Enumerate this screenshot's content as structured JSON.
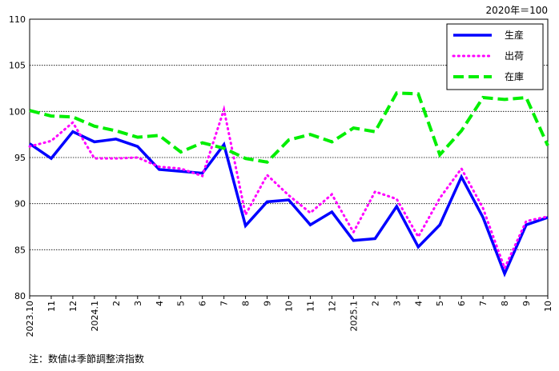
{
  "chart_data": {
    "type": "line",
    "unit_label": "2020年＝100",
    "note": "注：数値は季節調整済指数",
    "ylim": [
      80,
      110
    ],
    "yticks": [
      80,
      85,
      90,
      95,
      100,
      105,
      110
    ],
    "grid": "horizontal",
    "legend_position": "top-right",
    "categories": [
      "2023.10",
      "11",
      "12",
      "2024.1",
      "2",
      "3",
      "4",
      "5",
      "6",
      "7",
      "8",
      "9",
      "10",
      "11",
      "12",
      "2025.1",
      "2",
      "3",
      "4",
      "5",
      "6",
      "7",
      "8",
      "9",
      "10"
    ],
    "series": [
      {
        "name": "生産",
        "color": "#0000ff",
        "style": "solid",
        "values": [
          96.5,
          94.9,
          97.8,
          96.7,
          97.0,
          96.2,
          93.7,
          93.5,
          93.3,
          96.4,
          87.6,
          90.2,
          90.4,
          87.7,
          89.1,
          86.0,
          86.2,
          89.7,
          85.3,
          87.7,
          92.9,
          88.5,
          82.4,
          87.7,
          88.5
        ]
      },
      {
        "name": "出荷",
        "color": "#ff00ff",
        "style": "dotted",
        "values": [
          96.2,
          96.8,
          98.8,
          94.9,
          94.9,
          95.0,
          94.0,
          93.8,
          93.0,
          100.2,
          88.8,
          93.1,
          90.9,
          89.0,
          91.0,
          86.9,
          91.3,
          90.5,
          86.4,
          90.6,
          93.8,
          89.5,
          83.0,
          88.1,
          88.6
        ]
      },
      {
        "name": "在庫",
        "color": "#00ee00",
        "style": "dashed",
        "values": [
          100.1,
          99.5,
          99.4,
          98.4,
          97.9,
          97.2,
          97.4,
          95.6,
          96.6,
          96.0,
          94.9,
          94.5,
          96.9,
          97.5,
          96.7,
          98.2,
          97.8,
          102.0,
          101.9,
          95.3,
          97.9,
          101.5,
          101.3,
          101.5,
          96.3
        ]
      }
    ]
  }
}
